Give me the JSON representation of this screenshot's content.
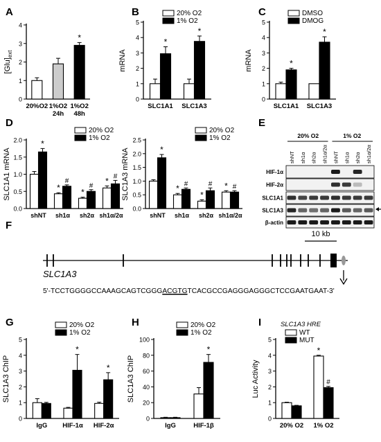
{
  "panel_letters": [
    "A",
    "B",
    "C",
    "D",
    "E",
    "F",
    "G",
    "H",
    "I"
  ],
  "colors": {
    "white": "#ffffff",
    "black": "#000000",
    "gray": "#cccccc"
  },
  "chart_data": [
    {
      "id": "A",
      "type": "bar",
      "ylabel": "[Glu]",
      "ylabel_sub": "ext",
      "yticks": [
        0,
        1,
        2,
        3,
        4
      ],
      "ylim": [
        0,
        4
      ],
      "categories": [
        {
          "lines": [
            "20%O2"
          ]
        },
        {
          "lines": [
            "1%O2",
            "24h"
          ]
        },
        {
          "lines": [
            "1%O2",
            "48h"
          ]
        }
      ],
      "values": [
        1.0,
        1.9,
        2.9
      ],
      "errors": [
        0.15,
        0.3,
        0.15
      ],
      "fills": [
        "white",
        "gray",
        "black"
      ],
      "marks": [
        "",
        "",
        "*"
      ]
    },
    {
      "id": "B",
      "type": "bar",
      "ylabel": "mRNA",
      "yticks": [
        0,
        1,
        2,
        3,
        4,
        5
      ],
      "ylim": [
        0,
        5
      ],
      "categories": [
        "SLC1A1",
        "SLC1A3"
      ],
      "legend": [
        "20% O2",
        "1% O2"
      ],
      "series": [
        {
          "name": "20% O2",
          "fill": "white",
          "values": [
            1.0,
            1.0
          ],
          "errors": [
            0.3,
            0.3
          ],
          "marks": [
            "",
            ""
          ]
        },
        {
          "name": "1% O2",
          "fill": "black",
          "values": [
            2.95,
            3.75
          ],
          "errors": [
            0.45,
            0.35
          ],
          "marks": [
            "*",
            "*"
          ]
        }
      ]
    },
    {
      "id": "C",
      "type": "bar",
      "ylabel": "mRNA",
      "yticks": [
        0,
        1,
        2,
        3,
        4,
        5
      ],
      "ylim": [
        0,
        5
      ],
      "categories": [
        "SLC1A1",
        "SLC1A3"
      ],
      "legend": [
        "DMSO",
        "DMOG"
      ],
      "series": [
        {
          "name": "DMSO",
          "fill": "white",
          "values": [
            1.0,
            1.0
          ],
          "errors": [
            0.1,
            0.0
          ],
          "marks": [
            "",
            ""
          ]
        },
        {
          "name": "DMOG",
          "fill": "black",
          "values": [
            1.9,
            3.7
          ],
          "errors": [
            0.1,
            0.35
          ],
          "marks": [
            "*",
            "*"
          ]
        }
      ]
    },
    {
      "id": "D1",
      "type": "bar",
      "ylabel": "SLC1A1 mRNA",
      "yticks": [
        0.0,
        0.5,
        1.0,
        1.5,
        2.0
      ],
      "ylim": [
        0,
        2
      ],
      "categories": [
        "shNT",
        "sh1α",
        "sh2α",
        "sh1α/2α"
      ],
      "legend": [
        "20% O2",
        "1% O2"
      ],
      "series": [
        {
          "name": "20% O2",
          "fill": "white",
          "values": [
            1.0,
            0.43,
            0.3,
            0.6
          ],
          "errors": [
            0.08,
            0.03,
            0.03,
            0.06
          ],
          "marks": [
            "",
            "*",
            "*",
            "*"
          ]
        },
        {
          "name": "1% O2",
          "fill": "black",
          "values": [
            1.65,
            0.65,
            0.5,
            0.72
          ],
          "errors": [
            0.1,
            0.04,
            0.05,
            0.1
          ],
          "marks": [
            "*",
            "#",
            "#",
            "#"
          ]
        }
      ]
    },
    {
      "id": "D2",
      "type": "bar",
      "ylabel": "SLC1A3 mRNA",
      "yticks": [
        0.0,
        0.5,
        1.0,
        1.5,
        2.0,
        2.5
      ],
      "ylim": [
        0,
        2.5
      ],
      "categories": [
        "shNT",
        "sh1α",
        "sh2α",
        "sh1α/2α"
      ],
      "legend": [
        "20% O2",
        "1% O2"
      ],
      "series": [
        {
          "name": "20% O2",
          "fill": "white",
          "values": [
            1.0,
            0.5,
            0.27,
            0.6
          ],
          "errors": [
            0.05,
            0.05,
            0.05,
            0.05
          ],
          "marks": [
            "",
            "*",
            "*",
            "*"
          ]
        },
        {
          "name": "1% O2",
          "fill": "black",
          "values": [
            1.85,
            0.7,
            0.65,
            0.6
          ],
          "errors": [
            0.12,
            0.05,
            0.1,
            0.05
          ],
          "marks": [
            "*",
            "#",
            "#",
            "#"
          ]
        }
      ]
    },
    {
      "id": "G",
      "type": "bar",
      "ylabel": "SLC1A3 ChIP",
      "yticks": [
        0,
        1,
        2,
        3,
        4,
        5
      ],
      "ylim": [
        0,
        5
      ],
      "categories": [
        "IgG",
        "HIF-1α",
        "HIF-2α"
      ],
      "legend": [
        "20% O2",
        "1% O2"
      ],
      "series": [
        {
          "name": "20% O2",
          "fill": "white",
          "values": [
            1.0,
            0.65,
            0.95
          ],
          "errors": [
            0.25,
            0.05,
            0.08
          ],
          "marks": [
            "",
            "",
            ""
          ]
        },
        {
          "name": "1% O2",
          "fill": "black",
          "values": [
            0.95,
            3.05,
            2.45
          ],
          "errors": [
            0.07,
            1.0,
            0.45
          ],
          "marks": [
            "",
            "*",
            "*"
          ]
        }
      ]
    },
    {
      "id": "H",
      "type": "bar",
      "ylabel": "SLC1A3 ChIP",
      "yticks": [
        0,
        20,
        40,
        60,
        80,
        100
      ],
      "ylim": [
        0,
        100
      ],
      "categories": [
        "IgG",
        "HIF-1β"
      ],
      "legend": [
        "20% O2",
        "1% O2"
      ],
      "series": [
        {
          "name": "20% O2",
          "fill": "white",
          "values": [
            1.0,
            31.0
          ],
          "errors": [
            0.5,
            8.0
          ],
          "marks": [
            "",
            ""
          ]
        },
        {
          "name": "1% O2",
          "fill": "black",
          "values": [
            1.0,
            71.0
          ],
          "errors": [
            0.5,
            10.0
          ],
          "marks": [
            "",
            "*"
          ]
        }
      ]
    },
    {
      "id": "I",
      "type": "bar",
      "ylabel": "Luc Activity",
      "yticks": [
        0,
        1,
        2,
        3,
        4,
        5
      ],
      "ylim": [
        0,
        5
      ],
      "categories": [
        "20% O2",
        "1% O2"
      ],
      "legend_title": "SLC1A3 HRE",
      "legend": [
        "WT",
        "MUT"
      ],
      "series": [
        {
          "name": "WT",
          "fill": "white",
          "values": [
            1.0,
            3.95
          ],
          "errors": [
            0.03,
            0.05
          ],
          "marks": [
            "",
            "*"
          ]
        },
        {
          "name": "MUT",
          "fill": "black",
          "values": [
            0.8,
            1.95
          ],
          "errors": [
            0.03,
            0.08
          ],
          "marks": [
            "",
            "#"
          ]
        }
      ]
    }
  ],
  "blot": {
    "group_labels": [
      "20% O2",
      "1% O2"
    ],
    "lane_labels": [
      "shNT",
      "sh1α",
      "sh2α",
      "sh1α/2α",
      "shNT",
      "sh1α",
      "sh2α",
      "sh1α/2α"
    ],
    "rows": [
      {
        "label": "HIF-1α",
        "intensities": [
          0,
          0,
          0,
          0,
          0.95,
          0,
          0.9,
          0
        ]
      },
      {
        "label": "HIF-2α",
        "intensities": [
          0,
          0,
          0,
          0,
          0.85,
          0.8,
          0.2,
          0
        ]
      },
      {
        "label": "SLC1A1",
        "intensities": [
          0.85,
          0.75,
          0.8,
          0.8,
          0.85,
          0.8,
          0.8,
          0.8
        ]
      },
      {
        "label": "SLC1A3",
        "intensities": [
          0.9,
          0.6,
          0.55,
          0.6,
          0.95,
          0.65,
          0.6,
          0.65
        ]
      },
      {
        "label": "β-actin",
        "intensities": [
          0.95,
          0.95,
          0.95,
          0.95,
          0.95,
          0.95,
          0.95,
          0.95
        ]
      }
    ]
  },
  "gene_map": {
    "gene_name": "SLC1A3",
    "scale_label": "10 kb",
    "sequence_prefix": "5'-TCCTGGGGCCAAAGCAGTCGGG",
    "sequence_motif": "ACGTG",
    "sequence_suffix": "TCACGCCGAGGGAGGGCTCCGAATGAAT-3'"
  }
}
